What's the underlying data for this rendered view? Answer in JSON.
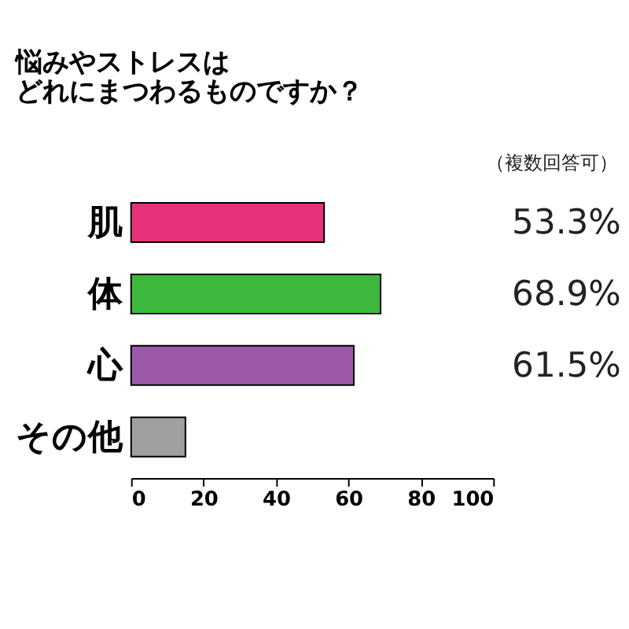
{
  "chart_data": {
    "type": "bar",
    "orientation": "horizontal",
    "title": [
      "悩みやストレスは",
      "どれにまつわるものですか？"
    ],
    "categories": [
      "肌",
      "体",
      "心",
      "その他"
    ],
    "values": [
      53.3,
      68.9,
      61.5,
      15
    ],
    "colors": [
      "#e8317a",
      "#3cb83c",
      "#9b59a8",
      "#a0a0a0"
    ],
    "value_labels": [
      "53.3%",
      "68.9%",
      "61.5%",
      null
    ],
    "annotations": [
      "（複数回答可）"
    ],
    "xlim": [
      0,
      100
    ],
    "xticks": [
      0,
      20,
      40,
      60,
      80,
      100
    ],
    "grid": false,
    "legend": false
  }
}
